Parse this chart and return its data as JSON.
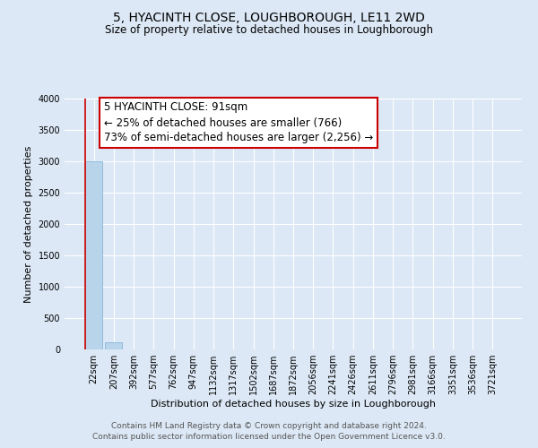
{
  "title": "5, HYACINTH CLOSE, LOUGHBOROUGH, LE11 2WD",
  "subtitle": "Size of property relative to detached houses in Loughborough",
  "xlabel": "Distribution of detached houses by size in Loughborough",
  "ylabel": "Number of detached properties",
  "footnote": "Contains HM Land Registry data © Crown copyright and database right 2024.\nContains public sector information licensed under the Open Government Licence v3.0.",
  "bar_labels": [
    "22sqm",
    "207sqm",
    "392sqm",
    "577sqm",
    "762sqm",
    "947sqm",
    "1132sqm",
    "1317sqm",
    "1502sqm",
    "1687sqm",
    "1872sqm",
    "2056sqm",
    "2241sqm",
    "2426sqm",
    "2611sqm",
    "2796sqm",
    "2981sqm",
    "3166sqm",
    "3351sqm",
    "3536sqm",
    "3721sqm"
  ],
  "bar_values": [
    3000,
    120,
    0,
    0,
    0,
    0,
    0,
    0,
    0,
    0,
    0,
    0,
    0,
    0,
    0,
    0,
    0,
    0,
    0,
    0,
    0
  ],
  "bar_color": "#b8d4ea",
  "bar_edge_color": "#7aafd4",
  "ylim": [
    0,
    4000
  ],
  "yticks": [
    0,
    500,
    1000,
    1500,
    2000,
    2500,
    3000,
    3500,
    4000
  ],
  "annotation_line1": "5 HYACINTH CLOSE: 91sqm",
  "annotation_line2": "← 25% of detached houses are smaller (766)",
  "annotation_line3": "73% of semi-detached houses are larger (2,256) →",
  "annotation_box_facecolor": "#ffffff",
  "annotation_box_edgecolor": "#cc0000",
  "vline_color": "#cc0000",
  "background_color": "#dce8f5",
  "grid_color": "#ffffff",
  "title_fontsize": 10,
  "subtitle_fontsize": 8.5,
  "ylabel_fontsize": 8,
  "xlabel_fontsize": 8,
  "tick_fontsize": 7,
  "footnote_fontsize": 6.5,
  "annotation_fontsize": 8.5
}
